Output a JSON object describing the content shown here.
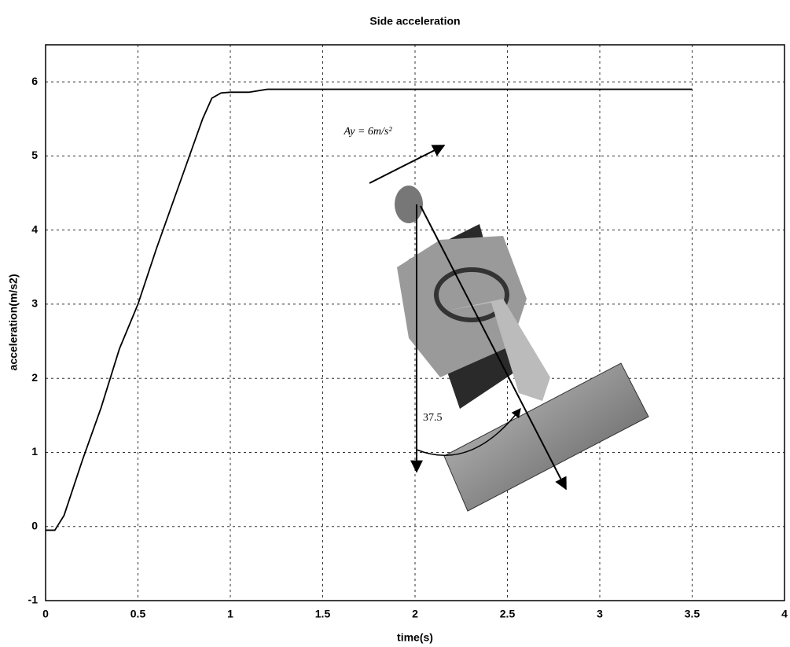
{
  "chart_data": {
    "type": "line",
    "title": "Side acceleration",
    "x_label": "time(s)",
    "y_label": "acceleration(m/s2)",
    "x": [
      0,
      0.05,
      0.1,
      0.2,
      0.3,
      0.4,
      0.5,
      0.6,
      0.7,
      0.8,
      0.85,
      0.9,
      0.95,
      1,
      1.1,
      1.2,
      1.5,
      2,
      2.5,
      3,
      3.5
    ],
    "values": [
      -0.05,
      -0.05,
      0.15,
      0.9,
      1.6,
      2.4,
      3.0,
      3.75,
      4.45,
      5.15,
      5.5,
      5.78,
      5.85,
      5.86,
      5.86,
      5.9,
      5.9,
      5.9,
      5.9,
      5.9,
      5.9
    ],
    "color": "#000000",
    "xlim": [
      0,
      4
    ],
    "xticks": [
      0,
      0.5,
      1,
      1.5,
      2,
      2.5,
      3,
      3.5,
      4
    ],
    "ylim": [
      -1,
      6.5
    ],
    "yticks": [
      -1,
      0,
      1,
      2,
      3,
      4,
      5,
      6
    ],
    "grid": true,
    "annotations": [
      "Ay = 6m/s²",
      "37.5"
    ]
  }
}
